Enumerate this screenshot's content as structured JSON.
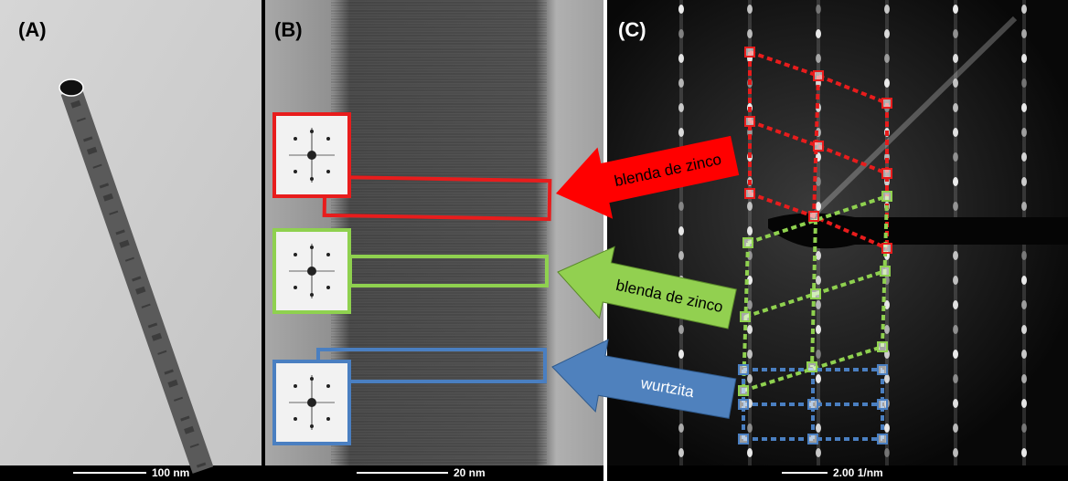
{
  "panels": [
    {
      "label": "(A)",
      "scale_bar": "100 nm"
    },
    {
      "label": "(B)",
      "scale_bar": "20 nm"
    },
    {
      "label": "(C)",
      "scale_bar": "2.00 1/nm"
    }
  ],
  "arrows": [
    {
      "label": "blenda de zinco"
    },
    {
      "label": "blenda de zinco"
    },
    {
      "label": "wurtzita"
    }
  ]
}
